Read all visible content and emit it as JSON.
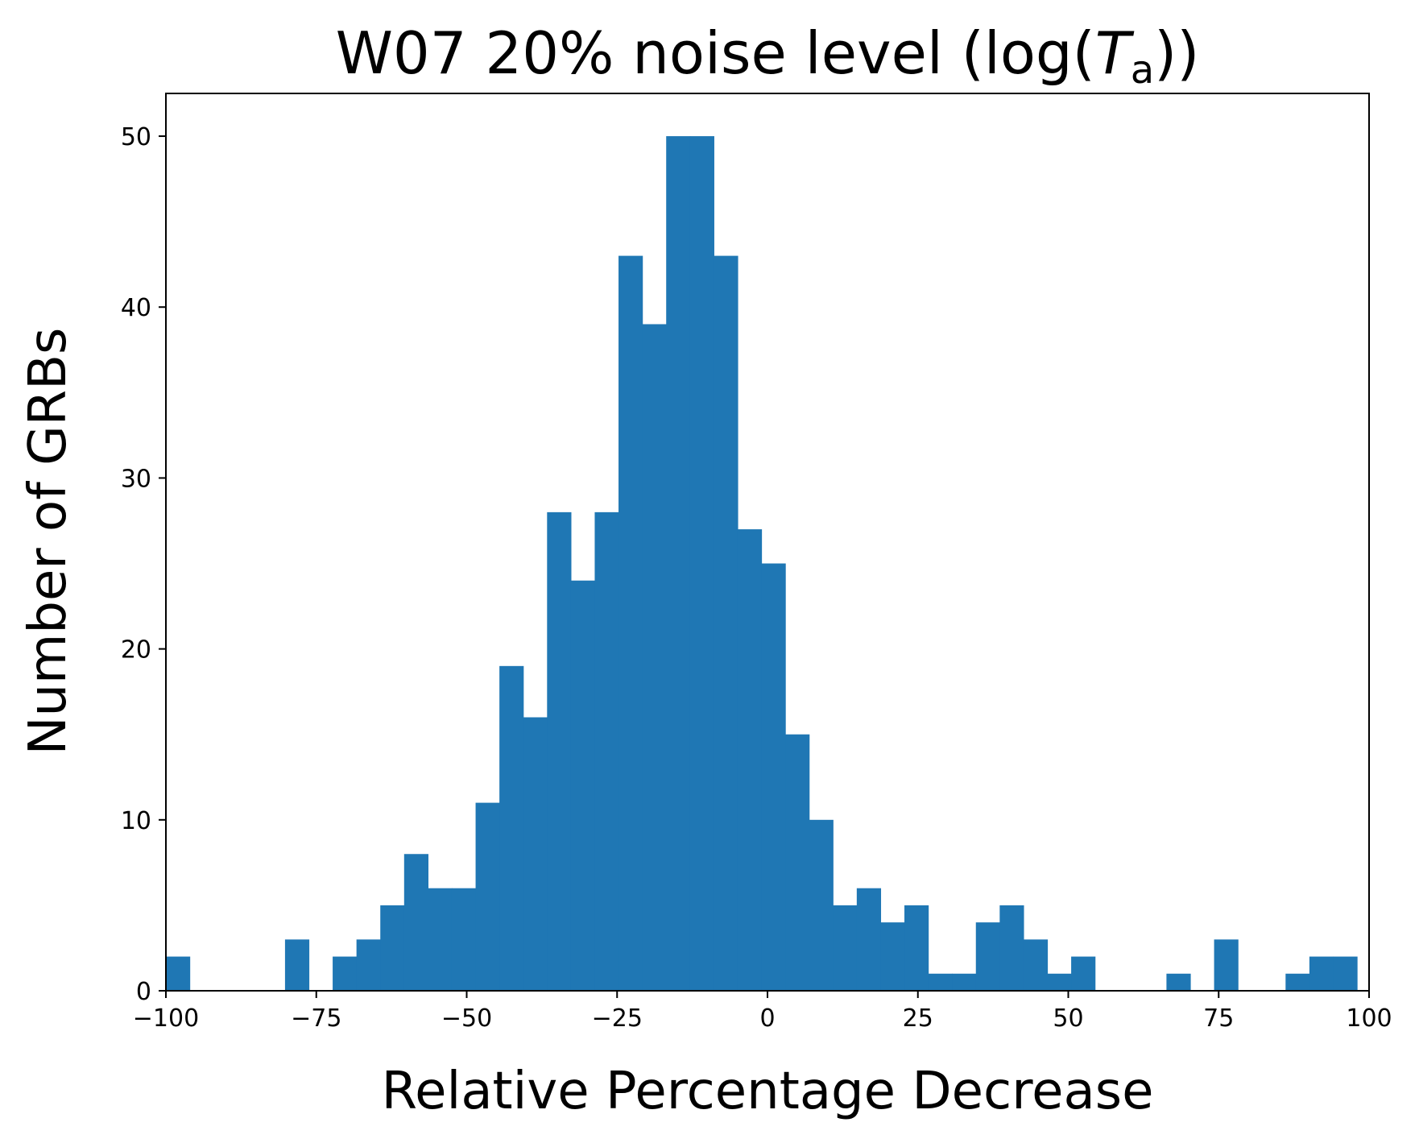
{
  "chart_data": {
    "type": "bar",
    "title": {
      "prefix": "W07 20% noise level (log(",
      "var": "T",
      "sub": "a",
      "suffix": "))"
    },
    "xlabel": "Relative Percentage Decrease",
    "ylabel": "Number of GRBs",
    "xlim": [
      -100,
      100
    ],
    "ylim": [
      0,
      52.5
    ],
    "xticks": [
      -100,
      -75,
      -50,
      -25,
      0,
      25,
      50,
      75,
      100
    ],
    "xtick_labels": [
      "−100",
      "−75",
      "−50",
      "−25",
      "0",
      "25",
      "50",
      "75",
      "100"
    ],
    "yticks": [
      0,
      10,
      20,
      30,
      40,
      50
    ],
    "ytick_labels": [
      "0",
      "10",
      "20",
      "30",
      "40",
      "50"
    ],
    "bin_start": -100,
    "bin_width": 3.96,
    "counts": [
      2,
      0,
      0,
      0,
      0,
      3,
      0,
      2,
      3,
      5,
      8,
      6,
      6,
      11,
      19,
      16,
      28,
      24,
      28,
      43,
      39,
      50,
      50,
      43,
      27,
      25,
      15,
      10,
      5,
      6,
      4,
      5,
      1,
      1,
      4,
      5,
      3,
      1,
      2,
      0,
      0,
      0,
      1,
      0,
      3,
      0,
      0,
      1,
      2,
      2
    ],
    "bar_color": "#1f77b4",
    "grid": false
  }
}
